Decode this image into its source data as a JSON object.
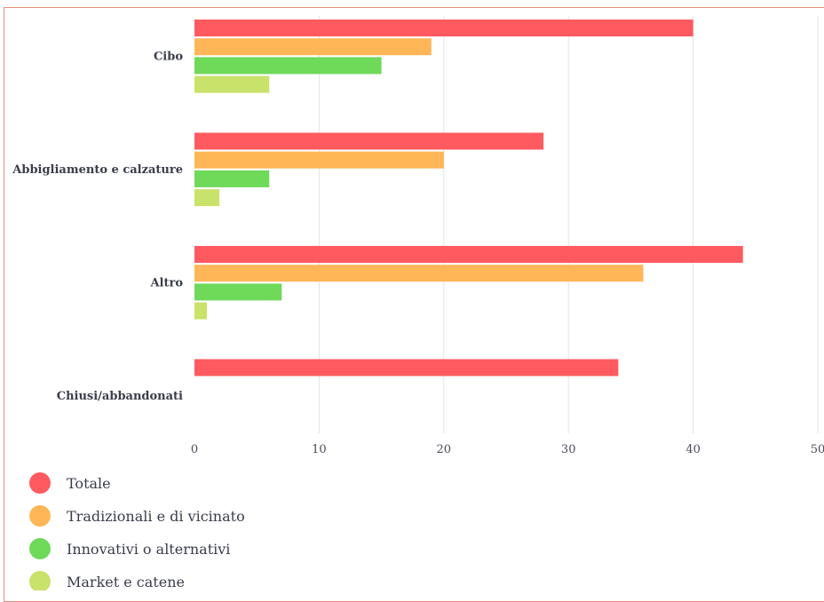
{
  "chart_data": {
    "type": "bar",
    "orientation": "horizontal",
    "categories": [
      "Cibo",
      "Abbigliamento e calzature",
      "Altro",
      "Chiusi/abbandonati"
    ],
    "series": [
      {
        "name": "Totale",
        "color": "#ff5a5f",
        "values": [
          40,
          28,
          44,
          34
        ]
      },
      {
        "name": "Tradizionali e di vicinato",
        "color": "#ffb657",
        "values": [
          19,
          20,
          36,
          null
        ]
      },
      {
        "name": "Innovativi o alternativi",
        "color": "#6fd95a",
        "values": [
          15,
          6,
          7,
          null
        ]
      },
      {
        "name": "Market e catene",
        "color": "#c9e26a",
        "values": [
          6,
          2,
          1,
          null
        ]
      }
    ],
    "xlim": [
      0,
      50
    ],
    "xticks": [
      0,
      10,
      20,
      30,
      40,
      50
    ],
    "grid": true,
    "legend_position": "bottom-left"
  }
}
